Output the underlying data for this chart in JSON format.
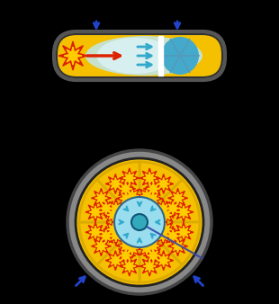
{
  "bg_color": "#000000",
  "fig_w": 3.1,
  "fig_h": 3.38,
  "gun_shell_color": "#888888",
  "gun_explosive_color": "#f5c000",
  "gun_uranium_color": "#44aacc",
  "gun_shockwave_color": "#99ddee",
  "gun_blue_arrow_color": "#2244cc",
  "imp_shell_color": "#888888",
  "imp_explosive_color": "#f5c000",
  "imp_shockwave_color": "#99ddee",
  "imp_pu_color": "#33aabb",
  "imp_blue_arrow_color": "#2244cc",
  "imp_divider_color": "#ddaa00",
  "star_red": "#dd2200",
  "star_yellow": "#ffcc00"
}
